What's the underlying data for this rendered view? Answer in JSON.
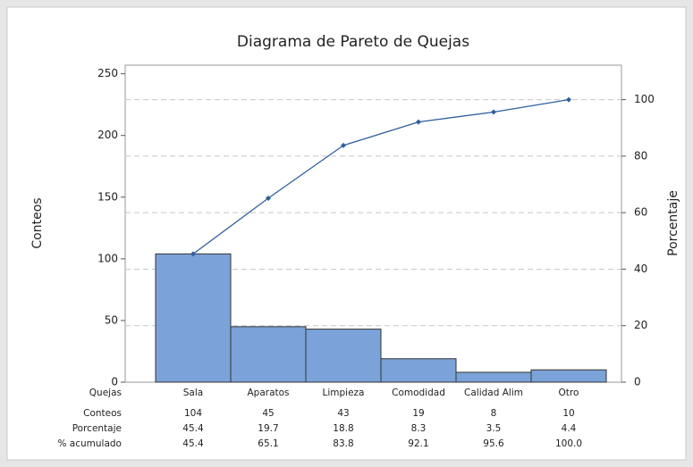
{
  "chart_data": {
    "type": "pareto",
    "title": "Diagrama de Pareto de Quejas",
    "ylabel": "Conteos",
    "y2label": "Porcentaje",
    "categories_label": "Quejas",
    "categories": [
      "Sala",
      "Aparatos",
      "Limpieza",
      "Comodidad",
      "Calidad Alim",
      "Otro"
    ],
    "series": [
      {
        "name": "Conteos",
        "color": "#7ba3d9",
        "values": [
          104,
          45,
          43,
          19,
          8,
          10
        ]
      },
      {
        "name": "Porcentaje",
        "values": [
          45.4,
          19.7,
          18.8,
          8.3,
          3.5,
          4.4
        ]
      },
      {
        "name": "% acumulado",
        "color": "#2e5f9e",
        "axis": "y2",
        "values": [
          45.4,
          65.1,
          83.8,
          92.1,
          95.6,
          100
        ],
        "value_labels": [
          "45.4",
          "65.1",
          "83.8",
          "92.1",
          "95.6",
          "100.0"
        ]
      }
    ],
    "ylim": [
      0,
      257
    ],
    "yticks": [
      0,
      50,
      100,
      150,
      200,
      250
    ],
    "y2lim": [
      0,
      112.2
    ],
    "y2ticks": [
      0,
      20,
      40,
      60,
      80,
      100
    ],
    "grid": true
  }
}
